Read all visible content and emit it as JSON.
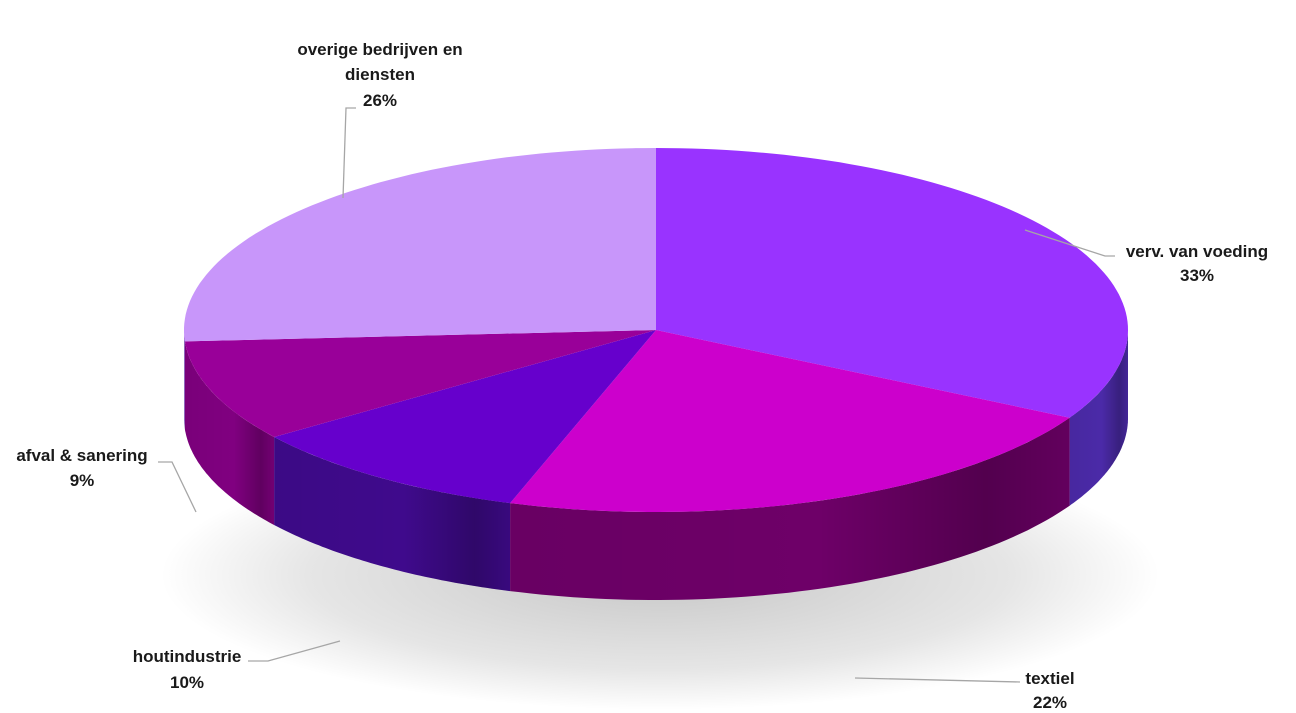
{
  "chart_data": {
    "type": "pie",
    "three_d": true,
    "legend": "none",
    "slices": [
      {
        "name": "verv. van voeding",
        "value": 33,
        "label": "33%",
        "top": "#9933ff",
        "side": "#4b2aa8"
      },
      {
        "name": "textiel",
        "value": 22,
        "label": "22%",
        "top": "#cc00cc",
        "side": "#6e0068"
      },
      {
        "name": "houtindustrie",
        "value": 10,
        "label": "10%",
        "top": "#6600cc",
        "side": "#3f0a8c"
      },
      {
        "name": "afval & sanering",
        "value": 9,
        "label": "9%",
        "top": "#990099",
        "side": "#800080"
      },
      {
        "name": "overige bedrijven en diensten",
        "value": 26,
        "label": "26%",
        "top": "#c896fa",
        "side": "#9a6ad0"
      }
    ]
  }
}
